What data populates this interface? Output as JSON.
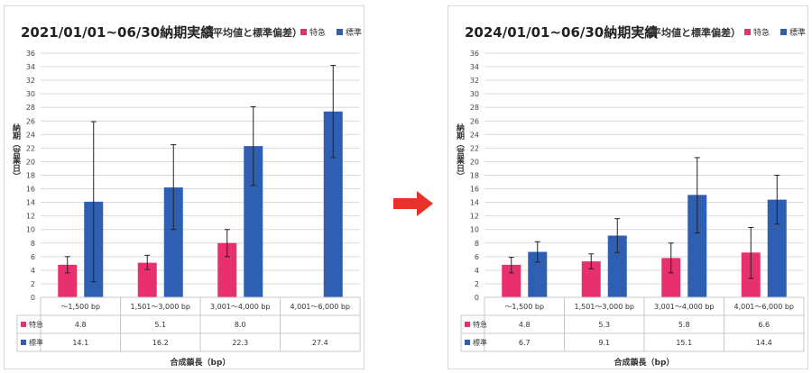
{
  "colors": {
    "express": "#E8306E",
    "standard": "#2F5FB3",
    "arrow": "#E8312A",
    "grid": "#d9d9d9"
  },
  "arrow_icon": "right-arrow-icon",
  "chart_data": [
    {
      "type": "bar",
      "title": "2021/01/01~06/30納期実績",
      "subtitle": "（平均値と標準偏差）",
      "xlabel": "合成鎖長（bp）",
      "ylabel": "納期（営業日）",
      "ylim": [
        0,
        36
      ],
      "yticks": [
        0,
        2,
        4,
        6,
        8,
        10,
        12,
        14,
        16,
        18,
        20,
        22,
        24,
        26,
        28,
        30,
        32,
        34,
        36
      ],
      "grid": true,
      "legend_position": "top-right",
      "categories": [
        "〜1,500 bp",
        "1,501〜3,000 bp",
        "3,001〜4,000 bp",
        "4,001〜6,000 bp"
      ],
      "series": [
        {
          "name": "特急",
          "values": [
            4.8,
            5.1,
            8.0,
            null
          ],
          "labels": [
            "4.8",
            "5.1",
            "8.0",
            ""
          ],
          "err_low": [
            3.6,
            4.1,
            6.0,
            null
          ],
          "err_high": [
            6.0,
            6.2,
            10.0,
            null
          ]
        },
        {
          "name": "標準",
          "values": [
            14.1,
            16.2,
            22.3,
            27.4
          ],
          "labels": [
            "14.1",
            "16.2",
            "22.3",
            "27.4"
          ],
          "err_low": [
            2.3,
            10.0,
            16.5,
            20.6
          ],
          "err_high": [
            25.9,
            22.5,
            28.1,
            34.2
          ]
        }
      ]
    },
    {
      "type": "bar",
      "title": "2024/01/01~06/30納期実績",
      "subtitle": "（平均値と標準偏差）",
      "xlabel": "合成鎖長（bp）",
      "ylabel": "納期（営業日）",
      "ylim": [
        0,
        36
      ],
      "yticks": [
        0,
        2,
        4,
        6,
        8,
        10,
        12,
        14,
        16,
        18,
        20,
        22,
        24,
        26,
        28,
        30,
        32,
        34,
        36
      ],
      "grid": true,
      "legend_position": "top-right",
      "categories": [
        "〜1,500 bp",
        "1,501〜3,000 bp",
        "3,001〜4,000 bp",
        "4,001〜6,000 bp"
      ],
      "series": [
        {
          "name": "特急",
          "values": [
            4.8,
            5.3,
            5.8,
            6.6
          ],
          "labels": [
            "4.8",
            "5.3",
            "5.8",
            "6.6"
          ],
          "err_low": [
            3.6,
            4.2,
            3.6,
            2.8
          ],
          "err_high": [
            5.9,
            6.4,
            8.0,
            10.3
          ]
        },
        {
          "name": "標準",
          "values": [
            6.7,
            9.1,
            15.1,
            14.4
          ],
          "labels": [
            "6.7",
            "9.1",
            "15.1",
            "14.4"
          ],
          "err_low": [
            5.2,
            6.6,
            9.5,
            10.8
          ],
          "err_high": [
            8.2,
            11.6,
            20.6,
            18.0
          ]
        }
      ]
    }
  ]
}
